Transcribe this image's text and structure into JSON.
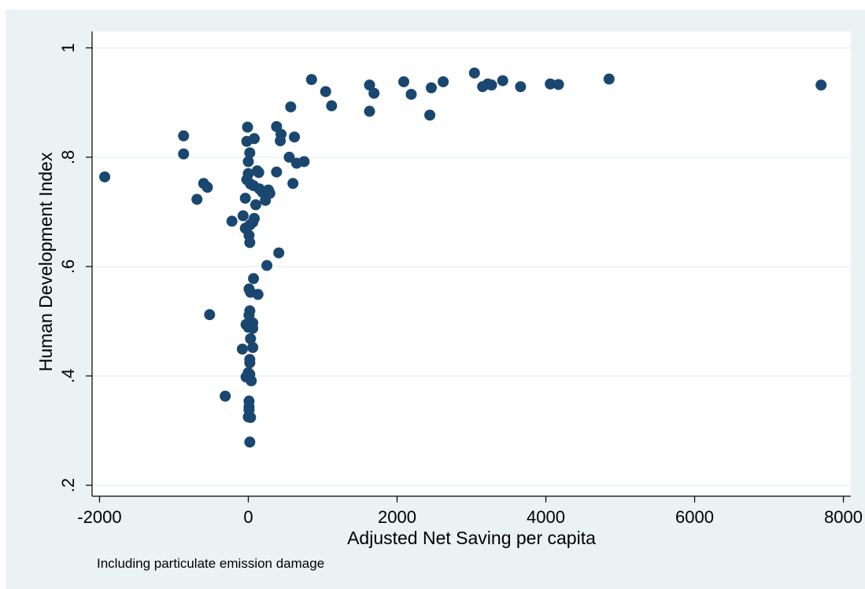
{
  "colors": {
    "outer_background": "#eaf2f3",
    "plot_background": "#ffffff",
    "gridline": "#eaf2f3",
    "marker": "#1a476f",
    "axis": "#000000"
  },
  "chart_data": {
    "type": "scatter",
    "xlabel": "Adjusted Net Saving per capita",
    "ylabel": "Human Development Index",
    "note": "Including particulate emission damage",
    "xlim": [
      -2100,
      8100
    ],
    "ylim": [
      0.18,
      1.03
    ],
    "x_ticks": [
      -2000,
      0,
      2000,
      4000,
      6000,
      8000
    ],
    "x_tick_labels": [
      "-2000",
      "0",
      "2000",
      "4000",
      "6000",
      "8000"
    ],
    "y_ticks": [
      0.2,
      0.4,
      0.6,
      0.8,
      1.0
    ],
    "y_tick_labels": [
      ".2",
      ".4",
      ".6",
      ".8",
      "1"
    ],
    "grid": "horizontal",
    "legend": "none",
    "marker": "filled-circle",
    "points": [
      {
        "x": -1930,
        "y": 0.764
      },
      {
        "x": -870,
        "y": 0.839
      },
      {
        "x": -870,
        "y": 0.806
      },
      {
        "x": -600,
        "y": 0.752
      },
      {
        "x": -550,
        "y": 0.745
      },
      {
        "x": -690,
        "y": 0.723
      },
      {
        "x": -520,
        "y": 0.512
      },
      {
        "x": -310,
        "y": 0.363
      },
      {
        "x": -220,
        "y": 0.683
      },
      {
        "x": -70,
        "y": 0.693
      },
      {
        "x": -40,
        "y": 0.67
      },
      {
        "x": -40,
        "y": 0.725
      },
      {
        "x": -20,
        "y": 0.759
      },
      {
        "x": -20,
        "y": 0.829
      },
      {
        "x": -10,
        "y": 0.855
      },
      {
        "x": 0,
        "y": 0.77
      },
      {
        "x": 0,
        "y": 0.792
      },
      {
        "x": 20,
        "y": 0.808
      },
      {
        "x": 80,
        "y": 0.834
      },
      {
        "x": 30,
        "y": 0.751
      },
      {
        "x": 70,
        "y": 0.748
      },
      {
        "x": 120,
        "y": 0.775
      },
      {
        "x": 140,
        "y": 0.772
      },
      {
        "x": 150,
        "y": 0.742
      },
      {
        "x": 190,
        "y": 0.736
      },
      {
        "x": 270,
        "y": 0.74
      },
      {
        "x": 290,
        "y": 0.734
      },
      {
        "x": 230,
        "y": 0.721
      },
      {
        "x": 100,
        "y": 0.713
      },
      {
        "x": 80,
        "y": 0.688
      },
      {
        "x": 60,
        "y": 0.681
      },
      {
        "x": 20,
        "y": 0.676
      },
      {
        "x": 10,
        "y": 0.657
      },
      {
        "x": 20,
        "y": 0.644
      },
      {
        "x": 410,
        "y": 0.625
      },
      {
        "x": 250,
        "y": 0.602
      },
      {
        "x": 70,
        "y": 0.578
      },
      {
        "x": 10,
        "y": 0.559
      },
      {
        "x": 30,
        "y": 0.553
      },
      {
        "x": 130,
        "y": 0.549
      },
      {
        "x": 20,
        "y": 0.519
      },
      {
        "x": 10,
        "y": 0.511
      },
      {
        "x": 60,
        "y": 0.497
      },
      {
        "x": -30,
        "y": 0.494
      },
      {
        "x": 0,
        "y": 0.489
      },
      {
        "x": 60,
        "y": 0.487
      },
      {
        "x": 30,
        "y": 0.468
      },
      {
        "x": 60,
        "y": 0.452
      },
      {
        "x": -80,
        "y": 0.449
      },
      {
        "x": 20,
        "y": 0.43
      },
      {
        "x": 20,
        "y": 0.424
      },
      {
        "x": 0,
        "y": 0.406
      },
      {
        "x": 20,
        "y": 0.403
      },
      {
        "x": -30,
        "y": 0.398
      },
      {
        "x": 40,
        "y": 0.391
      },
      {
        "x": 10,
        "y": 0.354
      },
      {
        "x": 10,
        "y": 0.344
      },
      {
        "x": 10,
        "y": 0.338
      },
      {
        "x": 0,
        "y": 0.325
      },
      {
        "x": 30,
        "y": 0.324
      },
      {
        "x": 20,
        "y": 0.279
      },
      {
        "x": 380,
        "y": 0.856
      },
      {
        "x": 440,
        "y": 0.842
      },
      {
        "x": 430,
        "y": 0.83
      },
      {
        "x": 620,
        "y": 0.837
      },
      {
        "x": 550,
        "y": 0.8
      },
      {
        "x": 650,
        "y": 0.789
      },
      {
        "x": 750,
        "y": 0.792
      },
      {
        "x": 380,
        "y": 0.773
      },
      {
        "x": 600,
        "y": 0.752
      },
      {
        "x": 570,
        "y": 0.892
      },
      {
        "x": 850,
        "y": 0.942
      },
      {
        "x": 1040,
        "y": 0.92
      },
      {
        "x": 1120,
        "y": 0.894
      },
      {
        "x": 1630,
        "y": 0.932
      },
      {
        "x": 1690,
        "y": 0.917
      },
      {
        "x": 1630,
        "y": 0.884
      },
      {
        "x": 2090,
        "y": 0.938
      },
      {
        "x": 2190,
        "y": 0.915
      },
      {
        "x": 2460,
        "y": 0.927
      },
      {
        "x": 2440,
        "y": 0.877
      },
      {
        "x": 2620,
        "y": 0.938
      },
      {
        "x": 3040,
        "y": 0.954
      },
      {
        "x": 3150,
        "y": 0.929
      },
      {
        "x": 3220,
        "y": 0.934
      },
      {
        "x": 3270,
        "y": 0.932
      },
      {
        "x": 3420,
        "y": 0.94
      },
      {
        "x": 3660,
        "y": 0.929
      },
      {
        "x": 4060,
        "y": 0.934
      },
      {
        "x": 4170,
        "y": 0.933
      },
      {
        "x": 4850,
        "y": 0.943
      },
      {
        "x": 7700,
        "y": 0.932
      }
    ]
  }
}
